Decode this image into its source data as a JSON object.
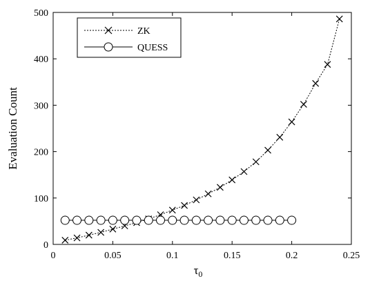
{
  "chart_data": {
    "type": "line",
    "title": "",
    "xlabel": "τ",
    "xlabel_subscript": "0",
    "ylabel": "Evaluation Count",
    "xlim": [
      0,
      0.25
    ],
    "ylim": [
      0,
      500
    ],
    "xticks": [
      0,
      0.05,
      0.1,
      0.15,
      0.2,
      0.25
    ],
    "xtick_labels": [
      "0",
      "0.05",
      "0.1",
      "0.15",
      "0.2",
      "0.25"
    ],
    "yticks": [
      0,
      100,
      200,
      300,
      400,
      500
    ],
    "ytick_labels": [
      "0",
      "100",
      "200",
      "300",
      "400",
      "500"
    ],
    "grid": false,
    "legend_position": "top-left",
    "series": [
      {
        "name": "ZK",
        "marker": "x",
        "line_style": "dotted",
        "color": "#000000",
        "x": [
          0.01,
          0.02,
          0.03,
          0.04,
          0.05,
          0.06,
          0.07,
          0.08,
          0.09,
          0.1,
          0.11,
          0.12,
          0.13,
          0.14,
          0.15,
          0.16,
          0.17,
          0.18,
          0.19,
          0.2,
          0.21,
          0.22,
          0.23,
          0.24
        ],
        "y": [
          9,
          14,
          20,
          26,
          33,
          40,
          47,
          55,
          64,
          74,
          84,
          96,
          109,
          123,
          139,
          157,
          178,
          203,
          231,
          264,
          302,
          347,
          388,
          486
        ]
      },
      {
        "name": "QUESS",
        "marker": "circle",
        "line_style": "solid",
        "color": "#000000",
        "x": [
          0.01,
          0.02,
          0.03,
          0.04,
          0.05,
          0.06,
          0.07,
          0.08,
          0.09,
          0.1,
          0.11,
          0.12,
          0.13,
          0.14,
          0.15,
          0.16,
          0.17,
          0.18,
          0.19,
          0.2
        ],
        "y": [
          52,
          52,
          52,
          52,
          52,
          52,
          52,
          52,
          52,
          52,
          52,
          52,
          52,
          52,
          52,
          52,
          52,
          52,
          52,
          52
        ]
      }
    ]
  }
}
